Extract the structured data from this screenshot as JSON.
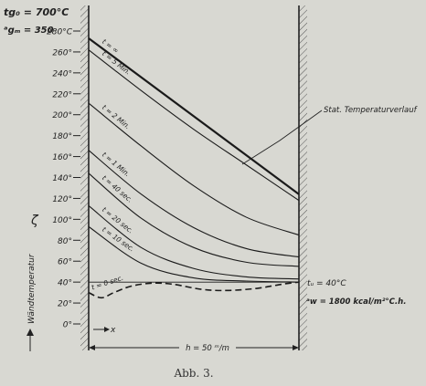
{
  "chart_data": {
    "type": "line",
    "title": "",
    "header_lines": [
      "tg₀ = 700°C",
      "ᵃgₘ = 350"
    ],
    "ylabel": "Wändtemperatur",
    "ylabel_symbol": "ζ",
    "xlabel": "x",
    "ylim": [
      0,
      280
    ],
    "xlim": [
      0,
      50
    ],
    "yticks": [
      0,
      20,
      40,
      60,
      80,
      100,
      120,
      140,
      160,
      180,
      200,
      220,
      240,
      260,
      280
    ],
    "ytick_labels": [
      "0°",
      "20°",
      "40°",
      "60°",
      "80°",
      "100°",
      "120°",
      "140°",
      "160°",
      "180°",
      "200°",
      "220°",
      "240°",
      "260°",
      "280°C"
    ],
    "grid": false,
    "series": [
      {
        "name": "t = ∞",
        "style": "solid-heavy",
        "x": [
          0,
          50
        ],
        "y": [
          273,
          124
        ]
      },
      {
        "name": "t = 5 Min.",
        "style": "solid",
        "x": [
          0,
          12.5,
          25,
          37.5,
          50
        ],
        "y": [
          262,
          223,
          186,
          152,
          118
        ]
      },
      {
        "name": "t = 2 Min.",
        "style": "solid",
        "x": [
          0,
          12.5,
          25,
          37.5,
          50
        ],
        "y": [
          211,
          170,
          132,
          102,
          85
        ]
      },
      {
        "name": "t = 1 Min.",
        "style": "solid",
        "x": [
          0,
          12.5,
          25,
          37.5,
          50
        ],
        "y": [
          166,
          124,
          92,
          72,
          64
        ]
      },
      {
        "name": "t = 40 sec.",
        "style": "solid",
        "x": [
          0,
          12.5,
          25,
          37.5,
          50
        ],
        "y": [
          144,
          101,
          73,
          59,
          55
        ]
      },
      {
        "name": "t = 20 sec.",
        "style": "solid",
        "x": [
          0,
          12.5,
          25,
          37.5,
          50
        ],
        "y": [
          113,
          73,
          53,
          45,
          43
        ]
      },
      {
        "name": "t = 10 sec.",
        "style": "solid",
        "x": [
          0,
          12.5,
          25,
          37.5,
          50
        ],
        "y": [
          93,
          58,
          44,
          41,
          40
        ]
      },
      {
        "name": "t = 0 sec.",
        "style": "dashed",
        "x": [
          0,
          3,
          6,
          10,
          15,
          20,
          27,
          33,
          40,
          46,
          50
        ],
        "y": [
          30,
          25,
          30,
          36,
          39,
          38,
          33,
          32,
          34,
          38,
          40
        ]
      },
      {
        "name": "tᵤ = 40°C",
        "style": "solid-thin",
        "x": [
          0,
          50
        ],
        "y": [
          40,
          40
        ]
      }
    ],
    "annotations": [
      {
        "text": "Stat. Temperaturverlauf"
      },
      {
        "text": "tᵤ = 40°C"
      },
      {
        "text": "ᵃw = 1800 kcal/m²°C.h."
      },
      {
        "text": "h = 50 ᵐ/m"
      }
    ]
  },
  "caption": "Abb. 3."
}
